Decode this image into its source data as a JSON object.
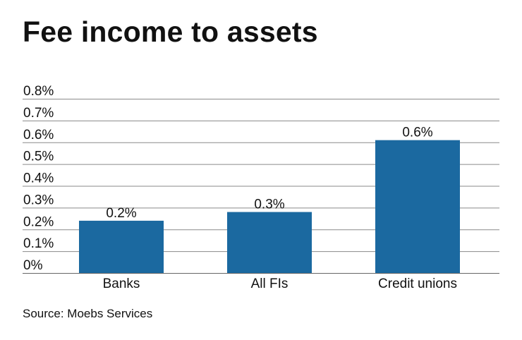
{
  "chart_data": {
    "type": "bar",
    "title": "Fee income to assets",
    "categories": [
      "Banks",
      "All FIs",
      "Credit unions"
    ],
    "values": [
      0.24,
      0.28,
      0.61
    ],
    "data_labels": [
      "0.2%",
      "0.3%",
      "0.6%"
    ],
    "ylim": [
      0,
      0.8
    ],
    "yticks": [
      0,
      0.1,
      0.2,
      0.3,
      0.4,
      0.5,
      0.6,
      0.7,
      0.8
    ],
    "ytick_labels": [
      "0%",
      "0.1%",
      "0.2%",
      "0.3%",
      "0.4%",
      "0.5%",
      "0.6%",
      "0.7%",
      "0.8%"
    ],
    "xlabel": "",
    "ylabel": "",
    "grid": true,
    "bar_color": "#1b69a0",
    "source": "Source: Moebs Services"
  }
}
